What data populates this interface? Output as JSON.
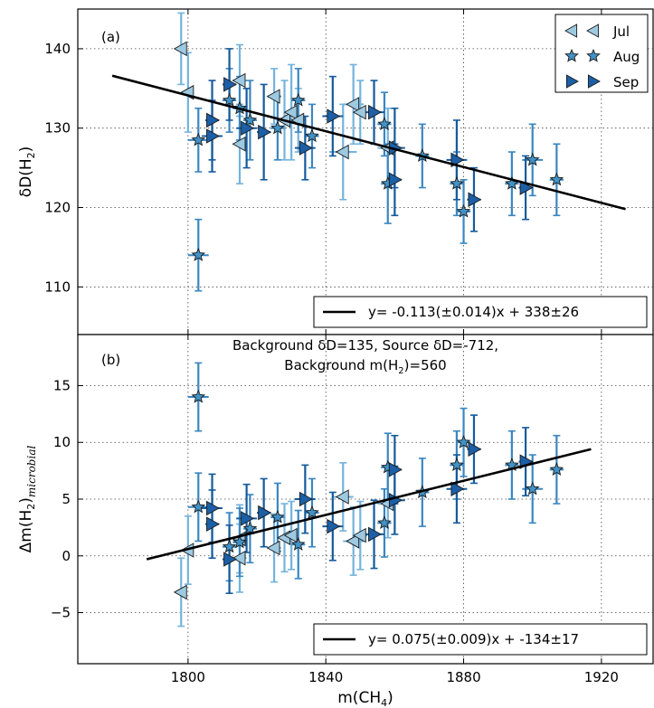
{
  "colors": {
    "jul": "#9ecae1",
    "aug": "#4292c6",
    "sep": "#1c5fa6",
    "jul_bar": "#74b3dd",
    "aug_bar": "#3a86c0",
    "sep_bar": "#155a9c",
    "fit": "#000000",
    "grid": "#444444"
  },
  "labels": {
    "ylabel_a_pre": "δD(H",
    "ylabel_a_sub": "2",
    "ylabel_a_post": ")",
    "ylabel_b_pre": "Δm(H",
    "ylabel_b_sub": "2",
    "ylabel_b_post": ")",
    "ylabel_b_sub2": "microbial",
    "xlabel_pre": "m(CH",
    "xlabel_sub": "4",
    "xlabel_post": ")",
    "panel_a": "(a)",
    "panel_b": "(b)",
    "title_b_line1": "Background δD=135, Source δD=-712,",
    "title_b_line2_pre": "Background m(H",
    "title_b_line2_sub": "2",
    "title_b_line2_post": ")=560",
    "fit_a": "y= -0.113(±0.014)x + 338±26",
    "fit_b": "y= 0.075(±0.009)x + -134±17"
  },
  "chart_data": [
    {
      "type": "scatter",
      "panel": "(a)",
      "ylabel": "δD(H2)",
      "xlim": [
        1768,
        1935
      ],
      "ylim": [
        104,
        145
      ],
      "xticks": [
        1800,
        1840,
        1880,
        1920
      ],
      "yticks": [
        110,
        120,
        130,
        140
      ],
      "grid": true,
      "legend": {
        "position": "top-right",
        "entries": [
          "Jul",
          "Aug",
          "Sep"
        ]
      },
      "fit": {
        "label": "y= -0.113(±0.014)x + 338±26",
        "x": [
          1778,
          1927
        ],
        "y": [
          136.6,
          119.8
        ]
      },
      "series": [
        {
          "name": "Jul",
          "marker": "triangle-left",
          "points": [
            {
              "x": 1798,
              "y": 140,
              "ex": 1,
              "ey": 4.5
            },
            {
              "x": 1800,
              "y": 134.5,
              "ex": 1,
              "ey": 5
            },
            {
              "x": 1815,
              "y": 136,
              "ex": 2,
              "ey": 4.5
            },
            {
              "x": 1815,
              "y": 128,
              "ex": 2,
              "ey": 5
            },
            {
              "x": 1825,
              "y": 134,
              "ex": 2,
              "ey": 3.5
            },
            {
              "x": 1828,
              "y": 131,
              "ex": 2,
              "ey": 5
            },
            {
              "x": 1830,
              "y": 132,
              "ex": 2,
              "ey": 6
            },
            {
              "x": 1832,
              "y": 131,
              "ex": 2,
              "ey": 4
            },
            {
              "x": 1845,
              "y": 127,
              "ex": 4,
              "ey": 6
            },
            {
              "x": 1848,
              "y": 133,
              "ex": 3,
              "ey": 5
            },
            {
              "x": 1850,
              "y": 132,
              "ex": 2,
              "ey": 4
            },
            {
              "x": 1858,
              "y": 127.5,
              "ex": 3,
              "ey": 5
            }
          ]
        },
        {
          "name": "Aug",
          "marker": "star",
          "points": [
            {
              "x": 1803,
              "y": 114,
              "ex": 3,
              "ey": 4.5
            },
            {
              "x": 1803,
              "y": 128.5,
              "ex": 3,
              "ey": 4
            },
            {
              "x": 1812,
              "y": 133.5,
              "ex": 2,
              "ey": 4
            },
            {
              "x": 1815,
              "y": 132.5,
              "ex": 2,
              "ey": 4
            },
            {
              "x": 1818,
              "y": 131,
              "ex": 2,
              "ey": 5
            },
            {
              "x": 1826,
              "y": 130,
              "ex": 2,
              "ey": 4
            },
            {
              "x": 1832,
              "y": 133.5,
              "ex": 2,
              "ey": 4
            },
            {
              "x": 1836,
              "y": 129,
              "ex": 2,
              "ey": 4
            },
            {
              "x": 1857,
              "y": 130.5,
              "ex": 2,
              "ey": 4
            },
            {
              "x": 1858,
              "y": 123,
              "ex": 2,
              "ey": 5
            },
            {
              "x": 1868,
              "y": 126.5,
              "ex": 2,
              "ey": 4
            },
            {
              "x": 1878,
              "y": 123,
              "ex": 2,
              "ey": 4
            },
            {
              "x": 1880,
              "y": 119.5,
              "ex": 2,
              "ey": 4
            },
            {
              "x": 1894,
              "y": 123,
              "ex": 2,
              "ey": 4
            },
            {
              "x": 1900,
              "y": 126,
              "ex": 3,
              "ey": 4.5
            },
            {
              "x": 1907,
              "y": 123.5,
              "ex": 2,
              "ey": 4.5
            }
          ]
        },
        {
          "name": "Sep",
          "marker": "triangle-right",
          "points": [
            {
              "x": 1807,
              "y": 129,
              "ex": 3,
              "ey": 4.5
            },
            {
              "x": 1807,
              "y": 131,
              "ex": 2,
              "ey": 5
            },
            {
              "x": 1812,
              "y": 135.5,
              "ex": 2,
              "ey": 4.5
            },
            {
              "x": 1817,
              "y": 130,
              "ex": 3,
              "ey": 5
            },
            {
              "x": 1822,
              "y": 129.5,
              "ex": 2,
              "ey": 6
            },
            {
              "x": 1834,
              "y": 127.5,
              "ex": 3,
              "ey": 4
            },
            {
              "x": 1842,
              "y": 131.5,
              "ex": 3,
              "ey": 5
            },
            {
              "x": 1854,
              "y": 132,
              "ex": 3,
              "ey": 4
            },
            {
              "x": 1860,
              "y": 127.5,
              "ex": 3,
              "ey": 5
            },
            {
              "x": 1860,
              "y": 123.5,
              "ex": 2,
              "ey": 4.5
            },
            {
              "x": 1878,
              "y": 126,
              "ex": 3,
              "ey": 5
            },
            {
              "x": 1883,
              "y": 121,
              "ex": 2,
              "ey": 4
            },
            {
              "x": 1898,
              "y": 122.5,
              "ex": 2,
              "ey": 4
            }
          ]
        }
      ]
    },
    {
      "type": "scatter",
      "panel": "(b)",
      "ylabel": "Δm(H2)microbial",
      "xlabel": "m(CH4)",
      "title": "Background δD=135, Source δD=-712, Background m(H2)=560",
      "xlim": [
        1768,
        1935
      ],
      "ylim": [
        -9.5,
        19.5
      ],
      "xticks": [
        1800,
        1840,
        1880,
        1920
      ],
      "yticks": [
        -5,
        0,
        5,
        10,
        15
      ],
      "grid": true,
      "fit": {
        "label": "y= 0.075(±0.009)x + -134±17",
        "x": [
          1788,
          1917
        ],
        "y": [
          -0.3,
          9.4
        ]
      },
      "series": [
        {
          "name": "Jul",
          "marker": "triangle-left",
          "points": [
            {
              "x": 1798,
              "y": -3.2,
              "ex": 1,
              "ey": 3
            },
            {
              "x": 1800,
              "y": 0.5,
              "ex": 1,
              "ey": 3
            },
            {
              "x": 1815,
              "y": -0.2,
              "ex": 2,
              "ey": 3
            },
            {
              "x": 1815,
              "y": 1.5,
              "ex": 2,
              "ey": 3
            },
            {
              "x": 1825,
              "y": 0.7,
              "ex": 2,
              "ey": 3
            },
            {
              "x": 1828,
              "y": 1.6,
              "ex": 2,
              "ey": 3
            },
            {
              "x": 1830,
              "y": 1.8,
              "ex": 2,
              "ey": 3
            },
            {
              "x": 1845,
              "y": 5.2,
              "ex": 3,
              "ey": 3
            },
            {
              "x": 1848,
              "y": 1.3,
              "ex": 3,
              "ey": 3
            },
            {
              "x": 1850,
              "y": 1.8,
              "ex": 2,
              "ey": 3
            },
            {
              "x": 1858,
              "y": 4.6,
              "ex": 3,
              "ey": 3
            }
          ]
        },
        {
          "name": "Aug",
          "marker": "star",
          "points": [
            {
              "x": 1803,
              "y": 14,
              "ex": 3,
              "ey": 3
            },
            {
              "x": 1803,
              "y": 4.3,
              "ex": 3,
              "ey": 3
            },
            {
              "x": 1812,
              "y": 0.8,
              "ex": 2,
              "ey": 3
            },
            {
              "x": 1815,
              "y": 1.2,
              "ex": 2,
              "ey": 3
            },
            {
              "x": 1818,
              "y": 2.4,
              "ex": 2,
              "ey": 3
            },
            {
              "x": 1826,
              "y": 3.4,
              "ex": 2,
              "ey": 3
            },
            {
              "x": 1832,
              "y": 1,
              "ex": 2,
              "ey": 3
            },
            {
              "x": 1836,
              "y": 3.8,
              "ex": 2,
              "ey": 3
            },
            {
              "x": 1857,
              "y": 2.9,
              "ex": 2,
              "ey": 3
            },
            {
              "x": 1858,
              "y": 7.8,
              "ex": 2,
              "ey": 3
            },
            {
              "x": 1868,
              "y": 5.6,
              "ex": 2,
              "ey": 3
            },
            {
              "x": 1878,
              "y": 8,
              "ex": 2,
              "ey": 3
            },
            {
              "x": 1880,
              "y": 10,
              "ex": 2,
              "ey": 3
            },
            {
              "x": 1894,
              "y": 8,
              "ex": 2,
              "ey": 3
            },
            {
              "x": 1900,
              "y": 5.9,
              "ex": 3,
              "ey": 3
            },
            {
              "x": 1907,
              "y": 7.6,
              "ex": 2,
              "ey": 3
            }
          ]
        },
        {
          "name": "Sep",
          "marker": "triangle-right",
          "points": [
            {
              "x": 1807,
              "y": 4.2,
              "ex": 3,
              "ey": 3
            },
            {
              "x": 1807,
              "y": 2.8,
              "ex": 2,
              "ey": 3
            },
            {
              "x": 1812,
              "y": -0.3,
              "ex": 2,
              "ey": 3
            },
            {
              "x": 1817,
              "y": 3.3,
              "ex": 3,
              "ey": 3
            },
            {
              "x": 1822,
              "y": 3.8,
              "ex": 2,
              "ey": 3
            },
            {
              "x": 1834,
              "y": 5,
              "ex": 3,
              "ey": 3
            },
            {
              "x": 1842,
              "y": 2.6,
              "ex": 3,
              "ey": 3
            },
            {
              "x": 1854,
              "y": 1.9,
              "ex": 3,
              "ey": 3
            },
            {
              "x": 1860,
              "y": 4.9,
              "ex": 3,
              "ey": 3
            },
            {
              "x": 1860,
              "y": 7.6,
              "ex": 2,
              "ey": 3
            },
            {
              "x": 1878,
              "y": 5.9,
              "ex": 3,
              "ey": 3
            },
            {
              "x": 1883,
              "y": 9.4,
              "ex": 2,
              "ey": 3
            },
            {
              "x": 1898,
              "y": 8.3,
              "ex": 2,
              "ey": 3
            }
          ]
        }
      ]
    }
  ]
}
